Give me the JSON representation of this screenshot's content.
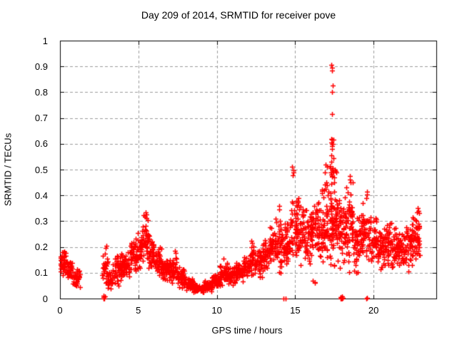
{
  "chart_data": {
    "type": "scatter",
    "title": "Day 209 of 2014, SRMTID for receiver pove",
    "xlabel": "GPS time / hours",
    "ylabel": "SRMTID / TECUs",
    "x_range": [
      0,
      24
    ],
    "y_range": [
      0,
      1
    ],
    "x_ticks": [
      {
        "v": 0,
        "label": "0"
      },
      {
        "v": 5,
        "label": "5"
      },
      {
        "v": 10,
        "label": "10"
      },
      {
        "v": 15,
        "label": "15"
      },
      {
        "v": 20,
        "label": "20"
      }
    ],
    "y_ticks": [
      {
        "v": 0,
        "label": "0"
      },
      {
        "v": 0.1,
        "label": "0.1"
      },
      {
        "v": 0.2,
        "label": "0.2"
      },
      {
        "v": 0.3,
        "label": "0.3"
      },
      {
        "v": 0.4,
        "label": "0.4"
      },
      {
        "v": 0.5,
        "label": "0.5"
      },
      {
        "v": 0.6,
        "label": "0.6"
      },
      {
        "v": 0.7,
        "label": "0.7"
      },
      {
        "v": 0.8,
        "label": "0.8"
      },
      {
        "v": 0.9,
        "label": "0.9"
      },
      {
        "v": 1,
        "label": "1"
      }
    ],
    "grid": true,
    "legend": "none",
    "marker": "plus",
    "colors": {
      "marker": "#ff0000",
      "grid": "#9b9b9b",
      "frame": "#000000",
      "text": "#000000",
      "background": "#ffffff"
    },
    "series": [
      {
        "name": "SRMTID",
        "density_bands": [
          [
            0.02,
            0.4,
            0.08,
            0.19,
            40
          ],
          [
            0.4,
            0.8,
            0.06,
            0.16,
            42
          ],
          [
            0.8,
            1.28,
            0.04,
            0.12,
            40
          ],
          [
            2.68,
            3.05,
            0.03,
            0.19,
            35
          ],
          [
            3.05,
            3.35,
            0.03,
            0.11,
            25
          ],
          [
            3.35,
            4.0,
            0.05,
            0.19,
            60
          ],
          [
            4.0,
            4.45,
            0.07,
            0.19,
            45
          ],
          [
            4.45,
            4.95,
            0.09,
            0.24,
            50
          ],
          [
            4.95,
            5.3,
            0.11,
            0.29,
            40
          ],
          [
            5.3,
            5.65,
            0.14,
            0.33,
            40
          ],
          [
            5.65,
            6.0,
            0.1,
            0.26,
            38
          ],
          [
            6.0,
            6.5,
            0.08,
            0.21,
            50
          ],
          [
            6.5,
            7.0,
            0.06,
            0.16,
            50
          ],
          [
            7.0,
            7.45,
            0.05,
            0.17,
            45
          ],
          [
            7.45,
            8.0,
            0.035,
            0.13,
            55
          ],
          [
            8.0,
            8.5,
            0.025,
            0.085,
            50
          ],
          [
            8.5,
            9.2,
            0.02,
            0.06,
            70
          ],
          [
            9.2,
            9.7,
            0.025,
            0.075,
            50
          ],
          [
            9.7,
            10.2,
            0.04,
            0.1,
            50
          ],
          [
            10.2,
            10.7,
            0.05,
            0.14,
            50
          ],
          [
            10.7,
            11.2,
            0.05,
            0.13,
            50
          ],
          [
            11.2,
            11.7,
            0.06,
            0.14,
            50
          ],
          [
            11.7,
            12.1,
            0.07,
            0.18,
            40
          ],
          [
            12.1,
            12.4,
            0.08,
            0.21,
            30
          ],
          [
            12.4,
            12.9,
            0.08,
            0.19,
            50
          ],
          [
            12.9,
            13.35,
            0.1,
            0.23,
            45
          ],
          [
            13.35,
            13.75,
            0.12,
            0.28,
            40
          ],
          [
            13.75,
            14.2,
            0.08,
            0.33,
            45
          ],
          [
            14.2,
            14.7,
            0.12,
            0.3,
            50
          ],
          [
            14.7,
            15.25,
            0.13,
            0.42,
            60
          ],
          [
            15.25,
            15.75,
            0.12,
            0.36,
            50
          ],
          [
            15.75,
            16.2,
            0.12,
            0.4,
            50
          ],
          [
            16.2,
            16.7,
            0.12,
            0.42,
            55
          ],
          [
            16.1,
            16.28,
            0.05,
            0.075,
            3
          ],
          [
            16.7,
            17.25,
            0.12,
            0.5,
            65
          ],
          [
            17.25,
            17.75,
            0.08,
            0.52,
            65
          ],
          [
            17.75,
            18.25,
            0.1,
            0.42,
            55
          ],
          [
            18.25,
            18.7,
            0.1,
            0.46,
            55
          ],
          [
            18.7,
            19.2,
            0.08,
            0.33,
            50
          ],
          [
            19.2,
            19.7,
            0.12,
            0.38,
            50
          ],
          [
            19.7,
            20.2,
            0.12,
            0.33,
            50
          ],
          [
            20.2,
            20.8,
            0.1,
            0.29,
            60
          ],
          [
            20.8,
            21.4,
            0.11,
            0.3,
            60
          ],
          [
            21.4,
            22.0,
            0.1,
            0.29,
            60
          ],
          [
            22.0,
            22.5,
            0.1,
            0.32,
            50
          ],
          [
            22.5,
            22.95,
            0.12,
            0.35,
            45
          ]
        ],
        "points": [
          [
            17.32,
            0.905
          ],
          [
            17.36,
            0.895
          ],
          [
            17.34,
            0.885
          ],
          [
            17.38,
            0.825
          ],
          [
            17.35,
            0.8
          ],
          [
            17.37,
            0.715
          ],
          [
            17.3,
            0.62
          ],
          [
            17.33,
            0.615
          ],
          [
            17.42,
            0.615
          ],
          [
            17.31,
            0.605
          ],
          [
            17.36,
            0.6
          ],
          [
            17.39,
            0.6
          ],
          [
            17.34,
            0.59
          ],
          [
            17.37,
            0.58
          ],
          [
            17.32,
            0.555
          ],
          [
            17.44,
            0.545
          ],
          [
            17.3,
            0.53
          ],
          [
            17.23,
            0.515
          ],
          [
            17.27,
            0.505
          ],
          [
            17.33,
            0.5
          ],
          [
            17.38,
            0.495
          ],
          [
            17.41,
            0.505
          ],
          [
            17.46,
            0.49
          ],
          [
            17.52,
            0.5
          ],
          [
            17.57,
            0.495
          ],
          [
            17.62,
            0.488
          ],
          [
            17.25,
            0.49
          ],
          [
            17.29,
            0.48
          ],
          [
            17.35,
            0.475
          ],
          [
            17.48,
            0.47
          ],
          [
            16.95,
            0.52
          ],
          [
            17.02,
            0.51
          ],
          [
            14.82,
            0.51
          ],
          [
            14.87,
            0.497
          ],
          [
            14.9,
            0.488
          ],
          [
            14.85,
            0.478
          ],
          [
            14.0,
            0.36
          ],
          [
            13.98,
            0.345
          ],
          [
            18.47,
            0.475
          ],
          [
            18.5,
            0.462
          ],
          [
            18.53,
            0.45
          ],
          [
            19.57,
            0.415
          ],
          [
            19.6,
            0.402
          ],
          [
            19.55,
            0.39
          ],
          [
            5.45,
            0.335
          ],
          [
            5.49,
            0.325
          ],
          [
            5.42,
            0.318
          ],
          [
            22.8,
            0.35
          ],
          [
            22.84,
            0.34
          ],
          [
            22.77,
            0.333
          ],
          [
            12.2,
            0.225
          ],
          [
            12.23,
            0.215
          ],
          [
            7.35,
            0.185
          ],
          [
            7.38,
            0.178
          ],
          [
            10.45,
            0.155
          ],
          [
            2.95,
            0.205
          ],
          [
            2.92,
            0.195
          ],
          [
            2.76,
            0
          ],
          [
            2.79,
            0.005
          ],
          [
            2.82,
            0
          ],
          [
            2.85,
            0.007
          ],
          [
            2.8,
            0.01
          ],
          [
            14.27,
            0
          ],
          [
            14.38,
            0
          ],
          [
            17.88,
            0
          ],
          [
            17.91,
            0.005
          ],
          [
            17.94,
            0
          ],
          [
            17.97,
            0.008
          ],
          [
            18.0,
            0
          ],
          [
            18.03,
            0.004
          ],
          [
            17.95,
            0.002
          ],
          [
            19.53,
            0
          ],
          [
            19.57,
            0.004
          ]
        ]
      }
    ]
  }
}
